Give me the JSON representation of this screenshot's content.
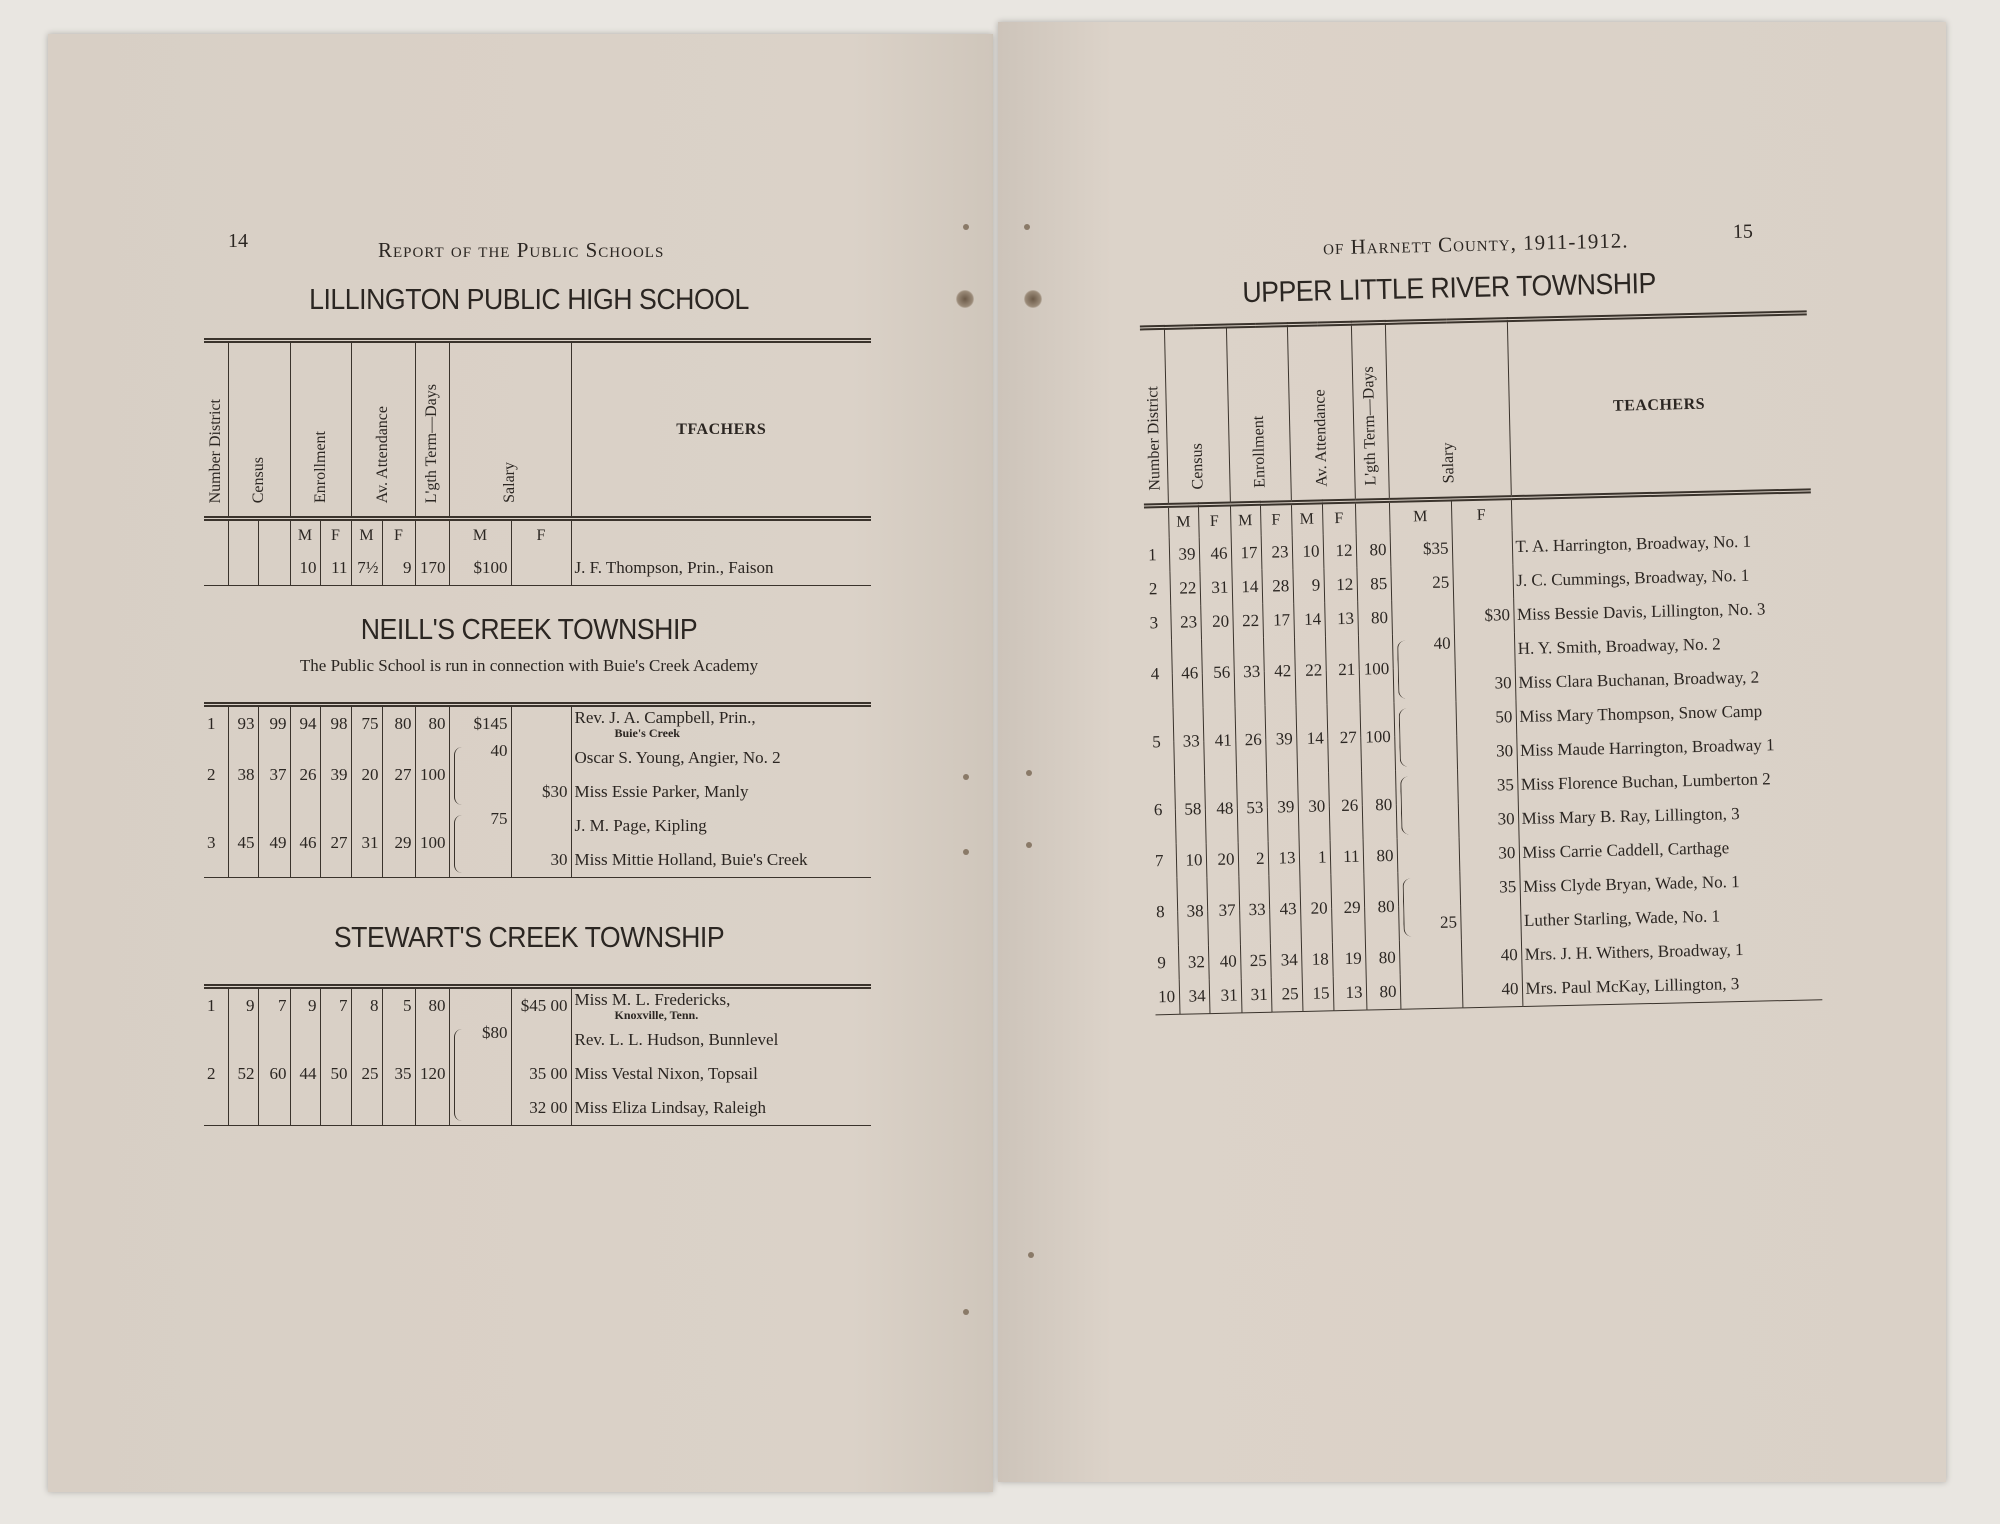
{
  "left_page": {
    "page_number": "14",
    "running_head": "Report of the Public Schools",
    "sections": [
      {
        "title": "LILLINGTON PUBLIC HIGH SCHOOL",
        "subtitle": "",
        "show_header": true,
        "header": {
          "district": "Number District",
          "census": "Census",
          "enrollment": "Enrollment",
          "attendance": "Av. Attendance",
          "term": "L'gth Term—Days",
          "salary": "Salary",
          "teachers": "TFACHERS"
        },
        "mf": [
          "M",
          "F",
          "M",
          "F",
          "M",
          "F"
        ],
        "mf_layout": "enrollment-attendance-salary",
        "districts": [
          {
            "district": "",
            "census_m": "",
            "census_f": "",
            "enr_m": "10",
            "enr_f": "11",
            "att_m": "7½",
            "att_f": "9",
            "days": "170",
            "brace": false,
            "teachers": [
              {
                "name": "J. F. Thompson, Prin., Faison",
                "note": "",
                "salary_m": "$100",
                "salary_f": ""
              }
            ]
          }
        ]
      },
      {
        "title": "NEILL'S CREEK TOWNSHIP",
        "subtitle": "The Public School is run in connection with Buie's Creek Academy",
        "show_header": false,
        "districts": [
          {
            "district": "1",
            "census_m": "93",
            "census_f": "99",
            "enr_m": "94",
            "enr_f": "98",
            "att_m": "75",
            "att_f": "80",
            "days": "80",
            "brace": false,
            "teachers": [
              {
                "name": "Rev. J. A. Campbell, Prin.,",
                "note": "Buie's Creek",
                "salary_m": "$145",
                "salary_f": ""
              }
            ]
          },
          {
            "district": "2",
            "census_m": "38",
            "census_f": "37",
            "enr_m": "26",
            "enr_f": "39",
            "att_m": "20",
            "att_f": "27",
            "days": "100",
            "brace": true,
            "teachers": [
              {
                "name": "Oscar S. Young, Angier, No. 2",
                "note": "",
                "salary_m": "40",
                "salary_f": ""
              },
              {
                "name": "Miss Essie Parker, Manly",
                "note": "",
                "salary_m": "",
                "salary_f": "$30"
              }
            ]
          },
          {
            "district": "3",
            "census_m": "45",
            "census_f": "49",
            "enr_m": "46",
            "enr_f": "27",
            "att_m": "31",
            "att_f": "29",
            "days": "100",
            "brace": true,
            "teachers": [
              {
                "name": "J. M. Page, Kipling",
                "note": "",
                "salary_m": "75",
                "salary_f": ""
              },
              {
                "name": "Miss Mittie Holland, Buie's Creek",
                "note": "",
                "salary_m": "",
                "salary_f": "30"
              }
            ]
          }
        ]
      },
      {
        "title": "STEWART'S CREEK TOWNSHIP",
        "subtitle": "",
        "show_header": false,
        "districts": [
          {
            "district": "1",
            "census_m": "9",
            "census_f": "7",
            "enr_m": "9",
            "enr_f": "7",
            "att_m": "8",
            "att_f": "5",
            "days": "80",
            "brace": false,
            "teachers": [
              {
                "name": "Miss M. L. Fredericks,",
                "note": "Knoxville, Tenn.",
                "salary_m": "",
                "salary_f": "$45 00"
              }
            ]
          },
          {
            "district": "2",
            "census_m": "52",
            "census_f": "60",
            "enr_m": "44",
            "enr_f": "50",
            "att_m": "25",
            "att_f": "35",
            "days": "120",
            "brace": true,
            "teachers": [
              {
                "name": "Rev. L. L. Hudson, Bunnlevel",
                "note": "",
                "salary_m": "$80",
                "salary_f": ""
              },
              {
                "name": "Miss Vestal Nixon, Topsail",
                "note": "",
                "salary_m": "",
                "salary_f": "35 00"
              },
              {
                "name": "Miss Eliza Lindsay, Raleigh",
                "note": "",
                "salary_m": "",
                "salary_f": "32 00"
              }
            ]
          }
        ]
      }
    ]
  },
  "right_page": {
    "page_number": "15",
    "running_head": "of Harnett County, 1911-1912.",
    "sections": [
      {
        "title": "UPPER LITTLE RIVER TOWNSHIP",
        "subtitle": "",
        "show_header": true,
        "header": {
          "district": "Number District",
          "census": "Census",
          "enrollment": "Enrollment",
          "attendance": "Av. Attendance",
          "term": "L'gth Term—Days",
          "salary": "Salary",
          "teachers": "TEACHERS"
        },
        "mf": [
          "M",
          "F",
          "M",
          "F",
          "M",
          "F",
          "M",
          "F"
        ],
        "mf_layout": "all",
        "districts": [
          {
            "district": "1",
            "census_m": "39",
            "census_f": "46",
            "enr_m": "17",
            "enr_f": "23",
            "att_m": "10",
            "att_f": "12",
            "days": "80",
            "brace": false,
            "teachers": [
              {
                "name": "T. A. Harrington, Broadway, No. 1",
                "note": "",
                "salary_m": "$35",
                "salary_f": ""
              }
            ]
          },
          {
            "district": "2",
            "census_m": "22",
            "census_f": "31",
            "enr_m": "14",
            "enr_f": "28",
            "att_m": "9",
            "att_f": "12",
            "days": "85",
            "brace": false,
            "teachers": [
              {
                "name": "J. C. Cummings, Broadway, No. 1",
                "note": "",
                "salary_m": "25",
                "salary_f": ""
              }
            ]
          },
          {
            "district": "3",
            "census_m": "23",
            "census_f": "20",
            "enr_m": "22",
            "enr_f": "17",
            "att_m": "14",
            "att_f": "13",
            "days": "80",
            "brace": false,
            "teachers": [
              {
                "name": "Miss Bessie Davis, Lillington, No. 3",
                "note": "",
                "salary_m": "",
                "salary_f": "$30"
              }
            ]
          },
          {
            "district": "4",
            "census_m": "46",
            "census_f": "56",
            "enr_m": "33",
            "enr_f": "42",
            "att_m": "22",
            "att_f": "21",
            "days": "100",
            "brace": true,
            "teachers": [
              {
                "name": "H. Y. Smith, Broadway, No. 2",
                "note": "",
                "salary_m": "40",
                "salary_f": ""
              },
              {
                "name": "Miss Clara Buchanan, Broadway, 2",
                "note": "",
                "salary_m": "",
                "salary_f": "30"
              }
            ]
          },
          {
            "district": "5",
            "census_m": "33",
            "census_f": "41",
            "enr_m": "26",
            "enr_f": "39",
            "att_m": "14",
            "att_f": "27",
            "days": "100",
            "brace": true,
            "teachers": [
              {
                "name": "Miss Mary Thompson, Snow Camp",
                "note": "",
                "salary_m": "",
                "salary_f": "50"
              },
              {
                "name": "Miss Maude Harrington, Broadway 1",
                "note": "",
                "salary_m": "",
                "salary_f": "30"
              }
            ]
          },
          {
            "district": "6",
            "census_m": "58",
            "census_f": "48",
            "enr_m": "53",
            "enr_f": "39",
            "att_m": "30",
            "att_f": "26",
            "days": "80",
            "brace": true,
            "teachers": [
              {
                "name": "Miss Florence Buchan, Lumberton 2",
                "note": "",
                "salary_m": "",
                "salary_f": "35"
              },
              {
                "name": "Miss Mary B. Ray, Lillington, 3",
                "note": "",
                "salary_m": "",
                "salary_f": "30"
              }
            ]
          },
          {
            "district": "7",
            "census_m": "10",
            "census_f": "20",
            "enr_m": "2",
            "enr_f": "13",
            "att_m": "1",
            "att_f": "11",
            "days": "80",
            "brace": false,
            "teachers": [
              {
                "name": "Miss Carrie Caddell, Carthage",
                "note": "",
                "salary_m": "",
                "salary_f": "30"
              }
            ]
          },
          {
            "district": "8",
            "census_m": "38",
            "census_f": "37",
            "enr_m": "33",
            "enr_f": "43",
            "att_m": "20",
            "att_f": "29",
            "days": "80",
            "brace": true,
            "teachers": [
              {
                "name": "Miss Clyde Bryan, Wade, No. 1",
                "note": "",
                "salary_m": "",
                "salary_f": "35"
              },
              {
                "name": "Luther Starling, Wade, No. 1",
                "note": "",
                "salary_m": "25",
                "salary_f": ""
              }
            ]
          },
          {
            "district": "9",
            "census_m": "32",
            "census_f": "40",
            "enr_m": "25",
            "enr_f": "34",
            "att_m": "18",
            "att_f": "19",
            "days": "80",
            "brace": false,
            "teachers": [
              {
                "name": "Mrs. J. H. Withers, Broadway, 1",
                "note": "",
                "salary_m": "",
                "salary_f": "40"
              }
            ]
          },
          {
            "district": "10",
            "census_m": "34",
            "census_f": "31",
            "enr_m": "31",
            "enr_f": "25",
            "att_m": "15",
            "att_f": "13",
            "days": "80",
            "brace": false,
            "teachers": [
              {
                "name": "Mrs. Paul McKay, Lillington, 3",
                "note": "",
                "salary_m": "",
                "salary_f": "40"
              }
            ]
          }
        ]
      }
    ]
  }
}
